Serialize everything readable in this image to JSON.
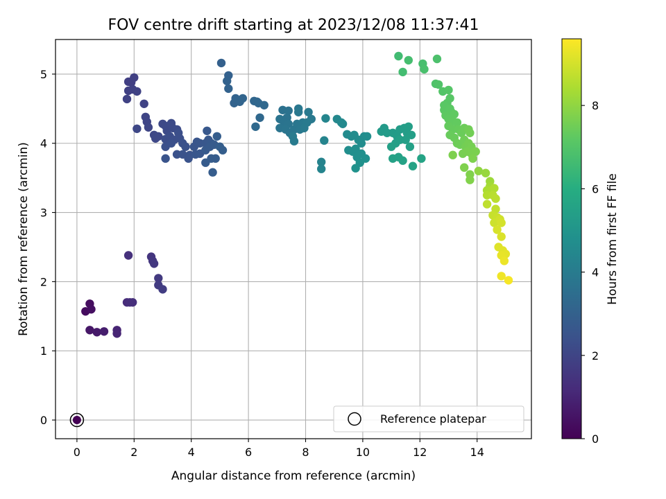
{
  "chart_data": {
    "type": "scatter",
    "title": "FOV centre drift starting at 2023/12/08 11:37:41",
    "xlabel": "Angular distance from reference (arcmin)",
    "ylabel": "Rotation from reference (arcmin)",
    "xlim": [
      -0.75,
      15.9
    ],
    "ylim": [
      -0.27,
      5.5
    ],
    "xticks": [
      0,
      2,
      4,
      6,
      8,
      10,
      12,
      14
    ],
    "yticks": [
      0,
      1,
      2,
      3,
      4,
      5
    ],
    "grid": true,
    "legend": {
      "position": "lower-right",
      "entries": [
        "Reference platepar"
      ]
    },
    "reference_point": {
      "x": 0,
      "y": 0,
      "hours": 0
    },
    "colorbar": {
      "label": "Hours from first FF file",
      "colormap": "viridis",
      "range": [
        0,
        9.6
      ],
      "ticks": [
        0,
        2,
        4,
        6,
        8
      ]
    },
    "points": [
      {
        "x": 0.3,
        "y": 1.57,
        "h": 0.3
      },
      {
        "x": 0.45,
        "y": 1.68,
        "h": 0.35
      },
      {
        "x": 0.5,
        "y": 1.6,
        "h": 0.4
      },
      {
        "x": 0.45,
        "y": 1.3,
        "h": 0.6
      },
      {
        "x": 0.7,
        "y": 1.27,
        "h": 0.7
      },
      {
        "x": 0.95,
        "y": 1.28,
        "h": 0.8
      },
      {
        "x": 1.4,
        "y": 1.3,
        "h": 1.0
      },
      {
        "x": 1.4,
        "y": 1.25,
        "h": 1.0
      },
      {
        "x": 1.75,
        "y": 1.7,
        "h": 1.2
      },
      {
        "x": 1.85,
        "y": 1.7,
        "h": 1.25
      },
      {
        "x": 1.95,
        "y": 1.7,
        "h": 1.3
      },
      {
        "x": 1.8,
        "y": 2.38,
        "h": 1.35
      },
      {
        "x": 2.6,
        "y": 2.36,
        "h": 1.5
      },
      {
        "x": 2.65,
        "y": 2.3,
        "h": 1.55
      },
      {
        "x": 2.7,
        "y": 2.26,
        "h": 1.6
      },
      {
        "x": 2.85,
        "y": 2.05,
        "h": 1.65
      },
      {
        "x": 2.85,
        "y": 1.95,
        "h": 1.7
      },
      {
        "x": 3.0,
        "y": 1.89,
        "h": 1.75
      },
      {
        "x": 1.8,
        "y": 4.89,
        "h": 1.8
      },
      {
        "x": 1.9,
        "y": 4.88,
        "h": 1.82
      },
      {
        "x": 2.0,
        "y": 4.95,
        "h": 1.84
      },
      {
        "x": 1.8,
        "y": 4.76,
        "h": 1.86
      },
      {
        "x": 1.95,
        "y": 4.78,
        "h": 1.88
      },
      {
        "x": 2.1,
        "y": 4.75,
        "h": 1.9
      },
      {
        "x": 1.75,
        "y": 4.64,
        "h": 1.92
      },
      {
        "x": 2.35,
        "y": 4.57,
        "h": 1.95
      },
      {
        "x": 2.4,
        "y": 4.38,
        "h": 2.0
      },
      {
        "x": 2.45,
        "y": 4.31,
        "h": 2.02
      },
      {
        "x": 2.5,
        "y": 4.23,
        "h": 2.04
      },
      {
        "x": 2.1,
        "y": 4.21,
        "h": 2.06
      },
      {
        "x": 2.7,
        "y": 4.12,
        "h": 2.08
      },
      {
        "x": 2.75,
        "y": 4.07,
        "h": 2.1
      },
      {
        "x": 2.85,
        "y": 4.1,
        "h": 2.12
      },
      {
        "x": 3.0,
        "y": 4.28,
        "h": 2.14
      },
      {
        "x": 3.1,
        "y": 4.25,
        "h": 2.16
      },
      {
        "x": 3.15,
        "y": 4.18,
        "h": 2.18
      },
      {
        "x": 3.3,
        "y": 4.29,
        "h": 2.2
      },
      {
        "x": 3.35,
        "y": 4.22,
        "h": 2.22
      },
      {
        "x": 3.5,
        "y": 4.2,
        "h": 2.24
      },
      {
        "x": 3.1,
        "y": 4.06,
        "h": 2.26
      },
      {
        "x": 3.25,
        "y": 4.1,
        "h": 2.28
      },
      {
        "x": 3.4,
        "y": 4.05,
        "h": 2.3
      },
      {
        "x": 3.55,
        "y": 4.15,
        "h": 2.32
      },
      {
        "x": 3.6,
        "y": 4.07,
        "h": 2.34
      },
      {
        "x": 3.1,
        "y": 3.95,
        "h": 2.36
      },
      {
        "x": 3.3,
        "y": 4.0,
        "h": 2.38
      },
      {
        "x": 3.7,
        "y": 4.0,
        "h": 2.4
      },
      {
        "x": 3.8,
        "y": 3.95,
        "h": 2.42
      },
      {
        "x": 3.5,
        "y": 3.84,
        "h": 2.44
      },
      {
        "x": 3.7,
        "y": 3.84,
        "h": 2.46
      },
      {
        "x": 3.9,
        "y": 3.78,
        "h": 2.48
      },
      {
        "x": 3.1,
        "y": 3.78,
        "h": 2.5
      },
      {
        "x": 3.95,
        "y": 3.83,
        "h": 2.52
      },
      {
        "x": 4.1,
        "y": 3.95,
        "h": 2.54
      },
      {
        "x": 4.2,
        "y": 4.02,
        "h": 2.56
      },
      {
        "x": 4.3,
        "y": 4.0,
        "h": 2.58
      },
      {
        "x": 4.15,
        "y": 3.84,
        "h": 2.6
      },
      {
        "x": 4.3,
        "y": 3.85,
        "h": 2.62
      },
      {
        "x": 4.5,
        "y": 4.0,
        "h": 2.64
      },
      {
        "x": 4.55,
        "y": 4.18,
        "h": 2.66
      },
      {
        "x": 4.6,
        "y": 4.05,
        "h": 2.68
      },
      {
        "x": 4.7,
        "y": 4.0,
        "h": 2.7
      },
      {
        "x": 4.5,
        "y": 3.9,
        "h": 2.72
      },
      {
        "x": 4.65,
        "y": 3.95,
        "h": 2.74
      },
      {
        "x": 4.8,
        "y": 3.98,
        "h": 2.76
      },
      {
        "x": 4.5,
        "y": 3.72,
        "h": 2.78
      },
      {
        "x": 4.7,
        "y": 3.78,
        "h": 2.8
      },
      {
        "x": 4.85,
        "y": 3.78,
        "h": 2.82
      },
      {
        "x": 4.75,
        "y": 3.58,
        "h": 2.84
      },
      {
        "x": 4.9,
        "y": 4.1,
        "h": 2.86
      },
      {
        "x": 5.0,
        "y": 3.95,
        "h": 2.88
      },
      {
        "x": 5.1,
        "y": 3.9,
        "h": 2.9
      },
      {
        "x": 5.05,
        "y": 5.16,
        "h": 2.95
      },
      {
        "x": 5.3,
        "y": 4.98,
        "h": 3.0
      },
      {
        "x": 5.25,
        "y": 4.9,
        "h": 3.02
      },
      {
        "x": 5.3,
        "y": 4.79,
        "h": 3.04
      },
      {
        "x": 5.5,
        "y": 4.58,
        "h": 3.06
      },
      {
        "x": 5.55,
        "y": 4.65,
        "h": 3.08
      },
      {
        "x": 5.65,
        "y": 4.62,
        "h": 3.1
      },
      {
        "x": 5.7,
        "y": 4.6,
        "h": 3.12
      },
      {
        "x": 5.8,
        "y": 4.65,
        "h": 3.14
      },
      {
        "x": 6.2,
        "y": 4.61,
        "h": 3.2
      },
      {
        "x": 6.3,
        "y": 4.6,
        "h": 3.22
      },
      {
        "x": 6.35,
        "y": 4.58,
        "h": 3.24
      },
      {
        "x": 6.55,
        "y": 4.55,
        "h": 3.26
      },
      {
        "x": 6.4,
        "y": 4.37,
        "h": 3.28
      },
      {
        "x": 6.25,
        "y": 4.24,
        "h": 3.3
      },
      {
        "x": 7.2,
        "y": 4.48,
        "h": 3.6
      },
      {
        "x": 7.4,
        "y": 4.47,
        "h": 3.62
      },
      {
        "x": 7.35,
        "y": 4.37,
        "h": 3.64
      },
      {
        "x": 7.1,
        "y": 4.35,
        "h": 3.66
      },
      {
        "x": 7.25,
        "y": 4.3,
        "h": 3.68
      },
      {
        "x": 7.4,
        "y": 4.28,
        "h": 3.7
      },
      {
        "x": 7.1,
        "y": 4.22,
        "h": 3.72
      },
      {
        "x": 7.3,
        "y": 4.2,
        "h": 3.74
      },
      {
        "x": 7.45,
        "y": 4.15,
        "h": 3.76
      },
      {
        "x": 7.6,
        "y": 4.2,
        "h": 3.78
      },
      {
        "x": 7.7,
        "y": 4.28,
        "h": 3.8
      },
      {
        "x": 7.8,
        "y": 4.2,
        "h": 3.82
      },
      {
        "x": 7.75,
        "y": 4.5,
        "h": 3.84
      },
      {
        "x": 7.75,
        "y": 4.45,
        "h": 3.86
      },
      {
        "x": 7.9,
        "y": 4.3,
        "h": 3.88
      },
      {
        "x": 8.1,
        "y": 4.45,
        "h": 3.9
      },
      {
        "x": 8.2,
        "y": 4.35,
        "h": 3.92
      },
      {
        "x": 8.05,
        "y": 4.3,
        "h": 3.94
      },
      {
        "x": 7.95,
        "y": 4.22,
        "h": 3.96
      },
      {
        "x": 7.55,
        "y": 4.1,
        "h": 3.98
      },
      {
        "x": 7.6,
        "y": 4.03,
        "h": 4.0
      },
      {
        "x": 8.55,
        "y": 3.73,
        "h": 4.3
      },
      {
        "x": 8.55,
        "y": 3.63,
        "h": 4.32
      },
      {
        "x": 8.65,
        "y": 4.04,
        "h": 4.34
      },
      {
        "x": 8.7,
        "y": 4.36,
        "h": 4.36
      },
      {
        "x": 9.1,
        "y": 4.35,
        "h": 4.5
      },
      {
        "x": 9.25,
        "y": 4.3,
        "h": 4.52
      },
      {
        "x": 9.3,
        "y": 4.28,
        "h": 4.54
      },
      {
        "x": 9.45,
        "y": 4.13,
        "h": 4.6
      },
      {
        "x": 9.6,
        "y": 4.1,
        "h": 4.62
      },
      {
        "x": 9.7,
        "y": 4.12,
        "h": 4.64
      },
      {
        "x": 9.85,
        "y": 4.05,
        "h": 4.66
      },
      {
        "x": 9.95,
        "y": 4.0,
        "h": 4.68
      },
      {
        "x": 10.05,
        "y": 4.1,
        "h": 4.7
      },
      {
        "x": 10.15,
        "y": 4.1,
        "h": 4.72
      },
      {
        "x": 9.5,
        "y": 3.9,
        "h": 4.74
      },
      {
        "x": 9.65,
        "y": 3.88,
        "h": 4.76
      },
      {
        "x": 9.75,
        "y": 3.92,
        "h": 4.78
      },
      {
        "x": 9.8,
        "y": 3.8,
        "h": 4.8
      },
      {
        "x": 9.95,
        "y": 3.85,
        "h": 4.82
      },
      {
        "x": 10.1,
        "y": 3.78,
        "h": 4.84
      },
      {
        "x": 9.9,
        "y": 3.72,
        "h": 4.86
      },
      {
        "x": 9.75,
        "y": 3.64,
        "h": 4.88
      },
      {
        "x": 10.65,
        "y": 4.17,
        "h": 5.2
      },
      {
        "x": 10.75,
        "y": 4.22,
        "h": 5.22
      },
      {
        "x": 10.85,
        "y": 4.15,
        "h": 5.24
      },
      {
        "x": 11.05,
        "y": 4.15,
        "h": 5.26
      },
      {
        "x": 11.2,
        "y": 4.1,
        "h": 5.28
      },
      {
        "x": 11.3,
        "y": 4.2,
        "h": 5.3
      },
      {
        "x": 11.45,
        "y": 4.22,
        "h": 5.32
      },
      {
        "x": 11.55,
        "y": 4.15,
        "h": 5.34
      },
      {
        "x": 11.6,
        "y": 4.24,
        "h": 5.36
      },
      {
        "x": 11.7,
        "y": 4.12,
        "h": 5.38
      },
      {
        "x": 11.15,
        "y": 4.0,
        "h": 5.4
      },
      {
        "x": 11.3,
        "y": 4.05,
        "h": 5.42
      },
      {
        "x": 11.5,
        "y": 4.05,
        "h": 5.44
      },
      {
        "x": 11.65,
        "y": 3.95,
        "h": 5.46
      },
      {
        "x": 11.0,
        "y": 3.95,
        "h": 5.48
      },
      {
        "x": 11.05,
        "y": 3.78,
        "h": 5.5
      },
      {
        "x": 11.25,
        "y": 3.8,
        "h": 5.52
      },
      {
        "x": 11.4,
        "y": 3.75,
        "h": 5.54
      },
      {
        "x": 11.75,
        "y": 3.67,
        "h": 5.56
      },
      {
        "x": 12.05,
        "y": 3.78,
        "h": 5.58
      },
      {
        "x": 11.25,
        "y": 5.26,
        "h": 6.6
      },
      {
        "x": 11.4,
        "y": 5.03,
        "h": 6.65
      },
      {
        "x": 11.6,
        "y": 5.2,
        "h": 6.7
      },
      {
        "x": 12.1,
        "y": 5.15,
        "h": 6.75
      },
      {
        "x": 12.15,
        "y": 5.07,
        "h": 6.8
      },
      {
        "x": 12.6,
        "y": 5.22,
        "h": 6.85
      },
      {
        "x": 12.55,
        "y": 4.86,
        "h": 6.9
      },
      {
        "x": 12.65,
        "y": 4.85,
        "h": 6.95
      },
      {
        "x": 12.8,
        "y": 4.75,
        "h": 7.0
      },
      {
        "x": 13.0,
        "y": 4.77,
        "h": 7.05
      },
      {
        "x": 13.05,
        "y": 4.65,
        "h": 7.1
      },
      {
        "x": 12.95,
        "y": 4.58,
        "h": 7.12
      },
      {
        "x": 12.85,
        "y": 4.55,
        "h": 7.14
      },
      {
        "x": 12.85,
        "y": 4.48,
        "h": 7.16
      },
      {
        "x": 13.05,
        "y": 4.5,
        "h": 7.18
      },
      {
        "x": 13.1,
        "y": 4.45,
        "h": 7.2
      },
      {
        "x": 12.9,
        "y": 4.4,
        "h": 7.22
      },
      {
        "x": 13.0,
        "y": 4.35,
        "h": 7.24
      },
      {
        "x": 13.2,
        "y": 4.42,
        "h": 7.26
      },
      {
        "x": 13.15,
        "y": 4.32,
        "h": 7.28
      },
      {
        "x": 13.3,
        "y": 4.3,
        "h": 7.3
      },
      {
        "x": 13.0,
        "y": 4.25,
        "h": 7.32
      },
      {
        "x": 13.15,
        "y": 4.2,
        "h": 7.34
      },
      {
        "x": 13.35,
        "y": 4.2,
        "h": 7.36
      },
      {
        "x": 13.05,
        "y": 4.12,
        "h": 7.38
      },
      {
        "x": 13.2,
        "y": 4.08,
        "h": 7.4
      },
      {
        "x": 13.45,
        "y": 4.15,
        "h": 7.42
      },
      {
        "x": 13.55,
        "y": 4.22,
        "h": 7.44
      },
      {
        "x": 13.3,
        "y": 4.0,
        "h": 7.46
      },
      {
        "x": 13.4,
        "y": 3.98,
        "h": 7.48
      },
      {
        "x": 13.55,
        "y": 4.05,
        "h": 7.5
      },
      {
        "x": 13.7,
        "y": 4.2,
        "h": 7.52
      },
      {
        "x": 13.75,
        "y": 4.15,
        "h": 7.54
      },
      {
        "x": 13.6,
        "y": 3.95,
        "h": 7.56
      },
      {
        "x": 13.7,
        "y": 4.0,
        "h": 7.58
      },
      {
        "x": 13.8,
        "y": 3.95,
        "h": 7.6
      },
      {
        "x": 13.5,
        "y": 3.85,
        "h": 7.62
      },
      {
        "x": 13.65,
        "y": 3.88,
        "h": 7.64
      },
      {
        "x": 13.8,
        "y": 3.85,
        "h": 7.66
      },
      {
        "x": 13.95,
        "y": 3.88,
        "h": 7.68
      },
      {
        "x": 13.15,
        "y": 3.83,
        "h": 7.7
      },
      {
        "x": 13.85,
        "y": 3.78,
        "h": 7.72
      },
      {
        "x": 13.55,
        "y": 3.65,
        "h": 7.74
      },
      {
        "x": 13.75,
        "y": 3.55,
        "h": 7.76
      },
      {
        "x": 13.75,
        "y": 3.47,
        "h": 7.78
      },
      {
        "x": 14.05,
        "y": 3.6,
        "h": 8.0
      },
      {
        "x": 14.3,
        "y": 3.57,
        "h": 8.1
      },
      {
        "x": 14.45,
        "y": 3.45,
        "h": 8.2
      },
      {
        "x": 14.45,
        "y": 3.38,
        "h": 8.3
      },
      {
        "x": 14.35,
        "y": 3.32,
        "h": 8.4
      },
      {
        "x": 14.5,
        "y": 3.32,
        "h": 8.45
      },
      {
        "x": 14.6,
        "y": 3.35,
        "h": 8.5
      },
      {
        "x": 14.35,
        "y": 3.25,
        "h": 8.55
      },
      {
        "x": 14.55,
        "y": 3.25,
        "h": 8.6
      },
      {
        "x": 14.65,
        "y": 3.2,
        "h": 8.65
      },
      {
        "x": 14.35,
        "y": 3.12,
        "h": 8.7
      },
      {
        "x": 14.65,
        "y": 3.05,
        "h": 8.75
      },
      {
        "x": 14.55,
        "y": 2.96,
        "h": 8.8
      },
      {
        "x": 14.7,
        "y": 2.93,
        "h": 8.85
      },
      {
        "x": 14.6,
        "y": 2.85,
        "h": 8.9
      },
      {
        "x": 14.8,
        "y": 2.9,
        "h": 8.95
      },
      {
        "x": 14.85,
        "y": 2.85,
        "h": 9.0
      },
      {
        "x": 14.7,
        "y": 2.75,
        "h": 9.05
      },
      {
        "x": 14.85,
        "y": 2.65,
        "h": 9.1
      },
      {
        "x": 14.75,
        "y": 2.5,
        "h": 9.15
      },
      {
        "x": 14.9,
        "y": 2.45,
        "h": 9.2
      },
      {
        "x": 15.0,
        "y": 2.4,
        "h": 9.25
      },
      {
        "x": 14.85,
        "y": 2.38,
        "h": 9.3
      },
      {
        "x": 14.95,
        "y": 2.3,
        "h": 9.35
      },
      {
        "x": 14.85,
        "y": 2.08,
        "h": 9.4
      },
      {
        "x": 15.1,
        "y": 2.02,
        "h": 9.5
      }
    ]
  }
}
